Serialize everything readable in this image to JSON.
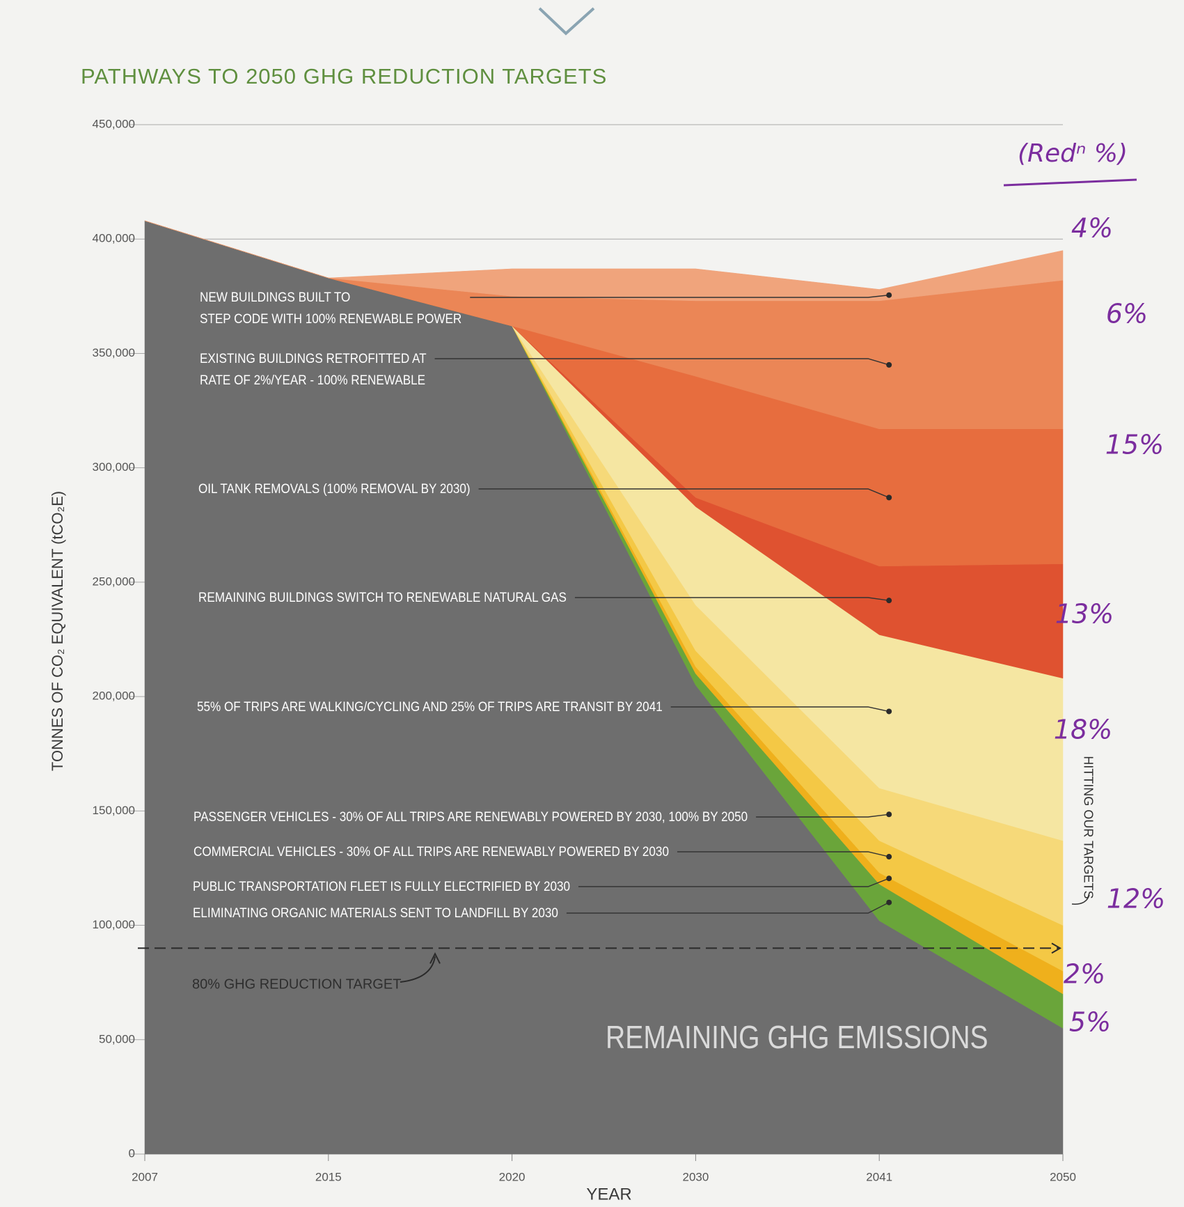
{
  "chart_data": {
    "type": "stacked_area",
    "title": "PATHWAYS TO 2050 GHG REDUCTION TARGETS",
    "y_label": "TONNES OF CO₂ EQUIVALENT (tCO₂E)",
    "x_label": "YEAR",
    "categories": [
      "2007",
      "2015",
      "2020",
      "2030",
      "2041",
      "2050"
    ],
    "series": [
      {
        "name": "REMAINING GHG EMISSIONS",
        "color": "#6e6e6e",
        "values": [
          408000,
          383000,
          362000,
          205000,
          102000,
          55000
        ]
      },
      {
        "name": "ELIMINATING ORGANIC MATERIALS SENT TO LANDFILL BY 2030",
        "color": "#6aa53a",
        "values": [
          0,
          0,
          0,
          5000,
          16000,
          15000
        ]
      },
      {
        "name": "PUBLIC TRANSPORTATION FLEET IS FULLY ELECTRIFIED BY 2030",
        "color": "#efb01c",
        "values": [
          0,
          0,
          0,
          3000,
          5000,
          10000
        ]
      },
      {
        "name": "COMMERCIAL VEHICLES - 30% OF ALL TRIPS ARE RENEWABLY POWERED BY 2030",
        "color": "#f4c845",
        "values": [
          0,
          0,
          0,
          7000,
          14000,
          20000
        ]
      },
      {
        "name": "PASSENGER VEHICLES - 30% OF ALL TRIPS ARE RENEWABLY POWERED BY 2030, 100% BY 2050",
        "color": "#f6d979",
        "values": [
          0,
          0,
          0,
          20000,
          23000,
          37000
        ]
      },
      {
        "name": "55% OF TRIPS ARE WALKING/CYCLING AND 25% OF TRIPS ARE TRANSIT BY 2041",
        "color": "#f5e6a2",
        "values": [
          0,
          0,
          0,
          43000,
          67000,
          71000
        ]
      },
      {
        "name": "REMAINING BUILDINGS SWITCH TO RENEWABLE NATURAL GAS",
        "color": "#df5230",
        "values": [
          0,
          0,
          0,
          4000,
          30000,
          50000
        ]
      },
      {
        "name": "OIL TANK REMOVALS (100% REMOVAL BY 2030)",
        "color": "#e76d3e",
        "values": [
          0,
          0,
          0,
          53000,
          60000,
          59000
        ]
      },
      {
        "name": "EXISTING BUILDINGS RETROFITTED AT\nRATE OF 2%/YEAR - 100% RENEWABLE",
        "color": "#eb8656",
        "values": [
          0,
          0,
          13000,
          33000,
          56000,
          65000
        ]
      },
      {
        "name": "NEW BUILDINGS BUILT TO\nSTEP CODE WITH 100% RENEWABLE POWER",
        "color": "#f0a47c",
        "values": [
          0,
          0,
          12000,
          14000,
          5000,
          13000
        ]
      }
    ],
    "ylim": [
      0,
      450000
    ],
    "yticks": [
      0,
      {
        "value": 50000,
        "label": "50,000"
      },
      {
        "value": 100000,
        "label": "100,000"
      },
      {
        "value": 150000,
        "label": "150,000"
      },
      {
        "value": 200000,
        "label": "200,000"
      },
      {
        "value": 250000,
        "label": "250,000"
      },
      {
        "value": 300000,
        "label": "300,000"
      },
      {
        "value": 350000,
        "label": "350,000"
      },
      {
        "value": 400000,
        "label": "400,000"
      },
      {
        "value": 450000,
        "label": "450,000"
      }
    ],
    "grid": true,
    "target": {
      "label": "80% GHG REDUCTION TARGET",
      "value": 90000
    },
    "side_label": "HITTING OUR TARGETS",
    "annotations": {
      "heading": "(Redⁿ %)",
      "reductions": [
        "4%",
        "6%",
        "15%",
        "13%",
        "18%",
        "12%",
        "2%",
        "5%"
      ]
    }
  }
}
